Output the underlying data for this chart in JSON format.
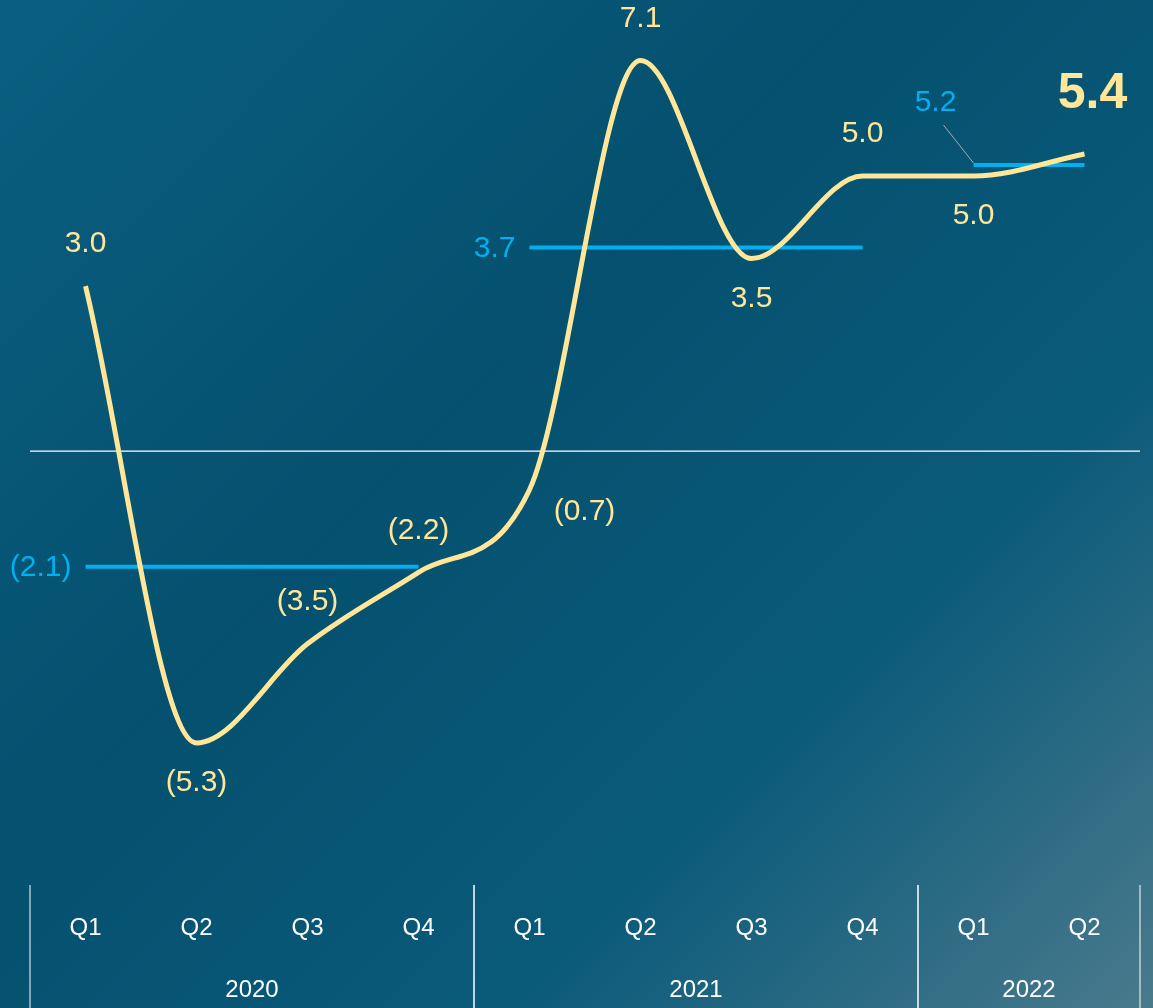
{
  "chart_data": {
    "type": "line",
    "categories": [
      "Q1",
      "Q2",
      "Q3",
      "Q4",
      "Q1",
      "Q2",
      "Q3",
      "Q4",
      "Q1",
      "Q2"
    ],
    "series": [
      {
        "color": "#ffe699",
        "values": [
          3.0,
          -5.3,
          -3.5,
          -2.2,
          -0.7,
          7.1,
          3.5,
          5.0,
          5.0,
          5.4
        ],
        "value_labels": [
          "3.0",
          "(5.3)",
          "(3.5)",
          "(2.2)",
          "(0.7)",
          "7.1",
          "3.5",
          "5.0",
          "5.0",
          "5.4"
        ]
      },
      {
        "color": "#00b0f0",
        "values": [
          -2.1,
          -2.1,
          -2.1,
          -2.1,
          null,
          null,
          null,
          null,
          null,
          null
        ],
        "value_labels": [
          "(2.1)",
          null,
          null,
          null,
          null,
          null,
          null,
          null,
          null,
          null
        ]
      },
      {
        "color": "#00b0f0",
        "values": [
          null,
          null,
          null,
          null,
          3.7,
          3.7,
          3.7,
          3.7,
          null,
          null
        ],
        "value_labels": [
          null,
          null,
          null,
          null,
          "3.7",
          null,
          null,
          null,
          null,
          null
        ]
      },
      {
        "color": "#00b0f0",
        "values": [
          null,
          null,
          null,
          null,
          null,
          null,
          null,
          null,
          5.2,
          5.2
        ],
        "value_labels": [
          null,
          null,
          null,
          null,
          null,
          null,
          null,
          null,
          "5.2",
          null
        ]
      }
    ],
    "annotations": [
      "2020",
      "2021",
      "2022"
    ],
    "ref_lines": [
      {
        "axis": "y",
        "value": 0,
        "color": "#ffffff"
      }
    ],
    "marker": "none",
    "line_style": "solid",
    "grid": false,
    "legend": false
  }
}
